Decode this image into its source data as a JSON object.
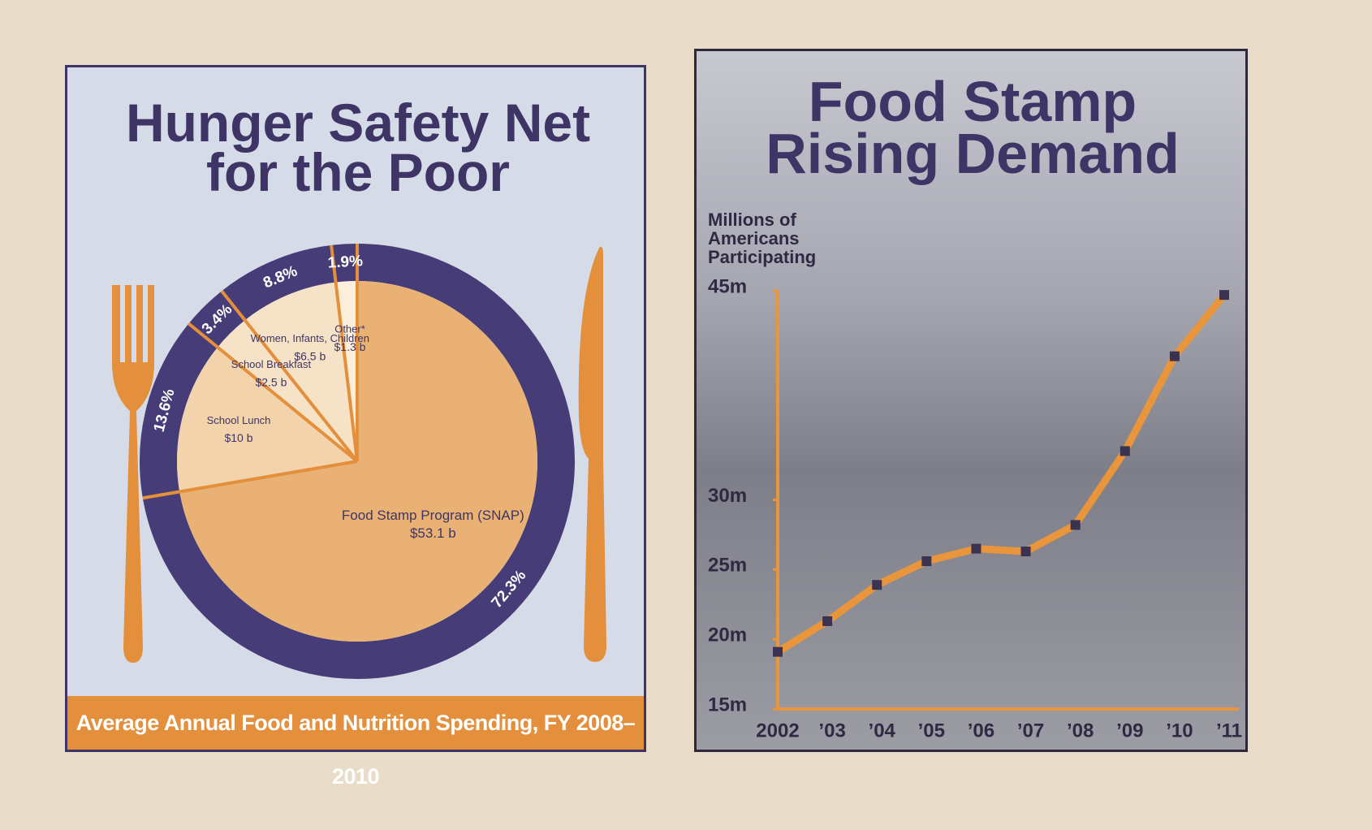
{
  "chart_data": [
    {
      "type": "pie",
      "title": "Hunger Safety Net for the Poor",
      "subtitle": "Average Annual Food and Nutrition Spending, FY 2008–2010",
      "categories": [
        "Food Stamp Program (SNAP)",
        "School Lunch",
        "School Breakfast",
        "Women, Infants, Children",
        "Other*"
      ],
      "values": [
        72.3,
        13.6,
        3.4,
        8.8,
        1.9
      ],
      "value_labels": [
        "72.3%",
        "13.6%",
        "3.4%",
        "8.8%",
        "1.9%"
      ],
      "amounts": [
        53.1,
        10,
        2.5,
        6.5,
        1.3
      ],
      "amount_labels": [
        "$53.1 b",
        "$10 b",
        "$2.5 b",
        "$6.5 b",
        "$1.3 b"
      ],
      "colors": [
        "#e9b274",
        "#f2d3ab",
        "#f6e2c6",
        "#f6e2c6",
        "#fbefdc"
      ]
    },
    {
      "type": "line",
      "title": "Food Stamp Rising Demand",
      "y_label": "Millions of Americans Participating",
      "categories": [
        "2002",
        "’03",
        "’04",
        "’05",
        "’06",
        "’07",
        "’08",
        "’09",
        "’10",
        "’11"
      ],
      "values": [
        19.1,
        21.3,
        23.9,
        25.6,
        26.5,
        26.3,
        28.2,
        33.5,
        40.3,
        44.7
      ],
      "color": "#e8953c",
      "ylim": [
        15,
        45
      ],
      "yticks": [
        {
          "value": 15,
          "label": "15m"
        },
        {
          "value": 20,
          "label": "20m"
        },
        {
          "value": 25,
          "label": "25m"
        },
        {
          "value": 30,
          "label": "30m"
        },
        {
          "value": 45,
          "label": "45m"
        }
      ]
    }
  ]
}
